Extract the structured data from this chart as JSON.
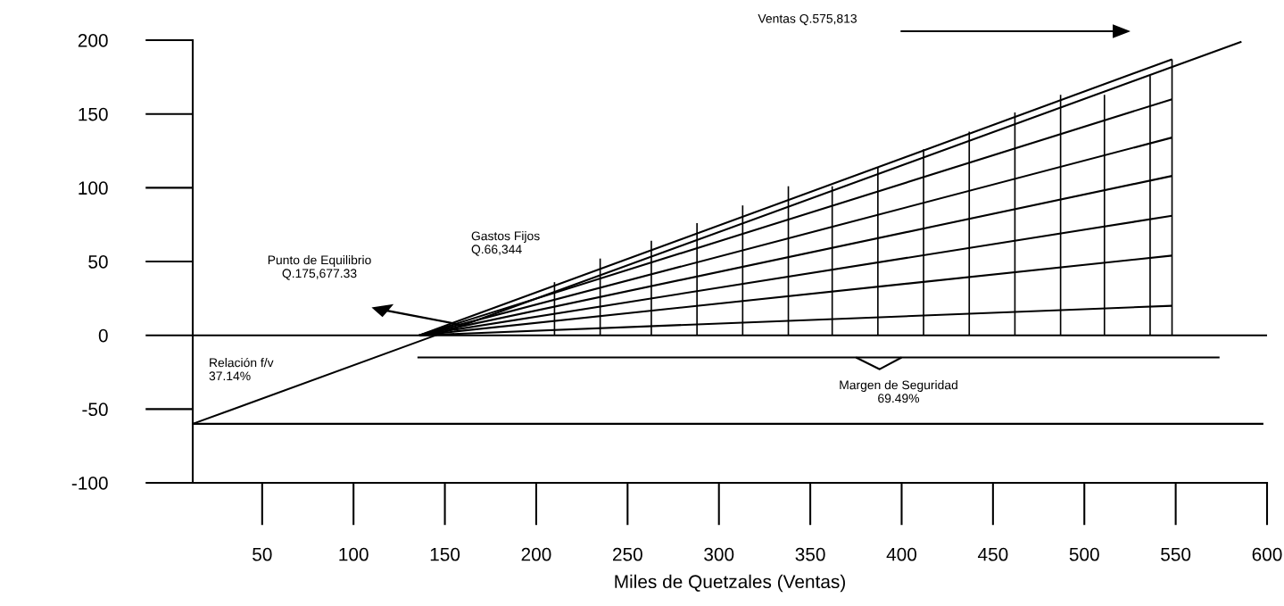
{
  "chart_data": {
    "type": "line",
    "xlabel": "Miles de Quetzales (Ventas)",
    "xlim": [
      12,
      600
    ],
    "xticks": [
      50,
      100,
      150,
      200,
      250,
      300,
      350,
      400,
      450,
      500,
      550,
      600
    ],
    "ylim": [
      -100,
      200
    ],
    "yticks": [
      -100,
      -50,
      0,
      50,
      100,
      150,
      200
    ],
    "grid": false,
    "legend": false,
    "marker": "none",
    "line_style": "solid",
    "series": [
      {
        "color": "#000000",
        "x": [
          12,
          586
        ],
        "values": [
          -60,
          199
        ]
      },
      {
        "color": "#000000",
        "x": [
          12,
          598
        ],
        "values": [
          -60,
          -60
        ]
      },
      {
        "color": "#000000",
        "x": [
          135,
          574
        ],
        "values": [
          -15,
          -15
        ]
      },
      {
        "color": "#000000",
        "x": [
          375,
          388,
          400
        ],
        "values": [
          -15,
          -23,
          -15
        ]
      },
      {
        "color": "#000000",
        "x": [
          136,
          548
        ],
        "values": [
          0,
          187
        ]
      },
      {
        "color": "#000000",
        "x": [
          136,
          548
        ],
        "values": [
          0,
          160
        ]
      },
      {
        "color": "#000000",
        "x": [
          136,
          548
        ],
        "values": [
          0,
          134
        ]
      },
      {
        "color": "#000000",
        "x": [
          136,
          548
        ],
        "values": [
          0,
          108
        ]
      },
      {
        "color": "#000000",
        "x": [
          136,
          548
        ],
        "values": [
          0,
          81
        ]
      },
      {
        "color": "#000000",
        "x": [
          136,
          548
        ],
        "values": [
          0,
          54
        ]
      },
      {
        "color": "#000000",
        "x": [
          136,
          548
        ],
        "values": [
          0,
          20
        ]
      },
      {
        "type": "bar",
        "color": "#000000",
        "x": [
          210,
          235,
          263,
          288,
          313,
          338,
          362,
          387,
          412,
          437,
          462,
          487,
          511,
          536,
          548
        ],
        "values": [
          36,
          52,
          64,
          76,
          88,
          101,
          101,
          114,
          126,
          138,
          151,
          163,
          163,
          176,
          187
        ]
      }
    ],
    "ref_lines": [
      {
        "axis": "y",
        "value": 0,
        "color": "#000000"
      }
    ],
    "annotations": [
      "Ventas Q.575,813",
      "Gastos Fijos\nQ.66,344",
      "Punto de Equilibrio\nQ.175,677.33",
      "Relación f/v\n37.14%",
      "Margen de Seguridad\n69.49%"
    ]
  }
}
